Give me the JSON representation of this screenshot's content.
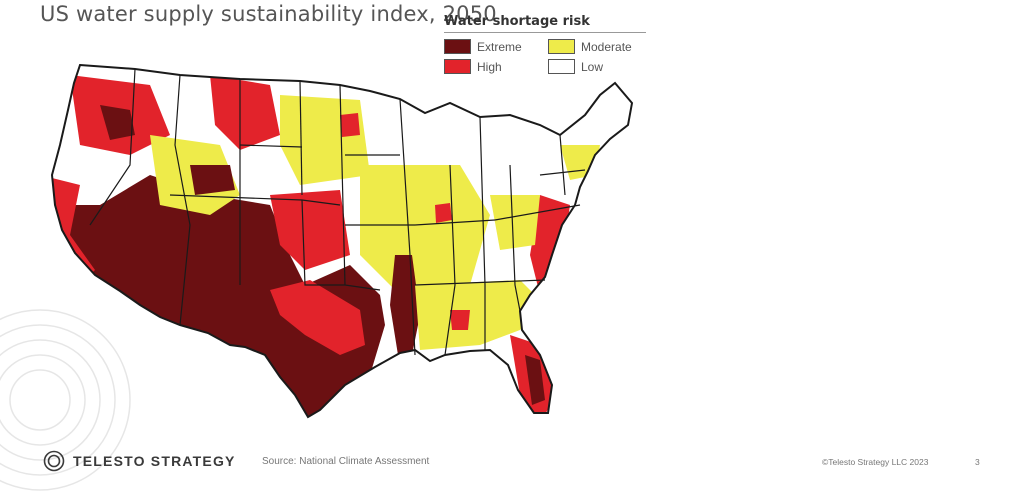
{
  "title": "US water supply sustainability index, 2050",
  "legend": {
    "title": "Water shortage risk",
    "items": [
      {
        "label": "Extreme",
        "color": "#6b1012"
      },
      {
        "label": "Moderate",
        "color": "#eeeb4a"
      },
      {
        "label": "High",
        "color": "#e2232b"
      },
      {
        "label": "Low",
        "color": "#ffffff"
      }
    ]
  },
  "map": {
    "region": "contiguous-united-states",
    "colors": {
      "extreme": "#6b1012",
      "high": "#e2232b",
      "moderate": "#eeeb4a",
      "low": "#ffffff",
      "border": "#1a1a1a"
    }
  },
  "footer": {
    "logo": "TELESTO STRATEGY",
    "source": "Source: National Climate Assessment",
    "copyright": "©Telesto Strategy LLC 2023",
    "page": "3"
  }
}
